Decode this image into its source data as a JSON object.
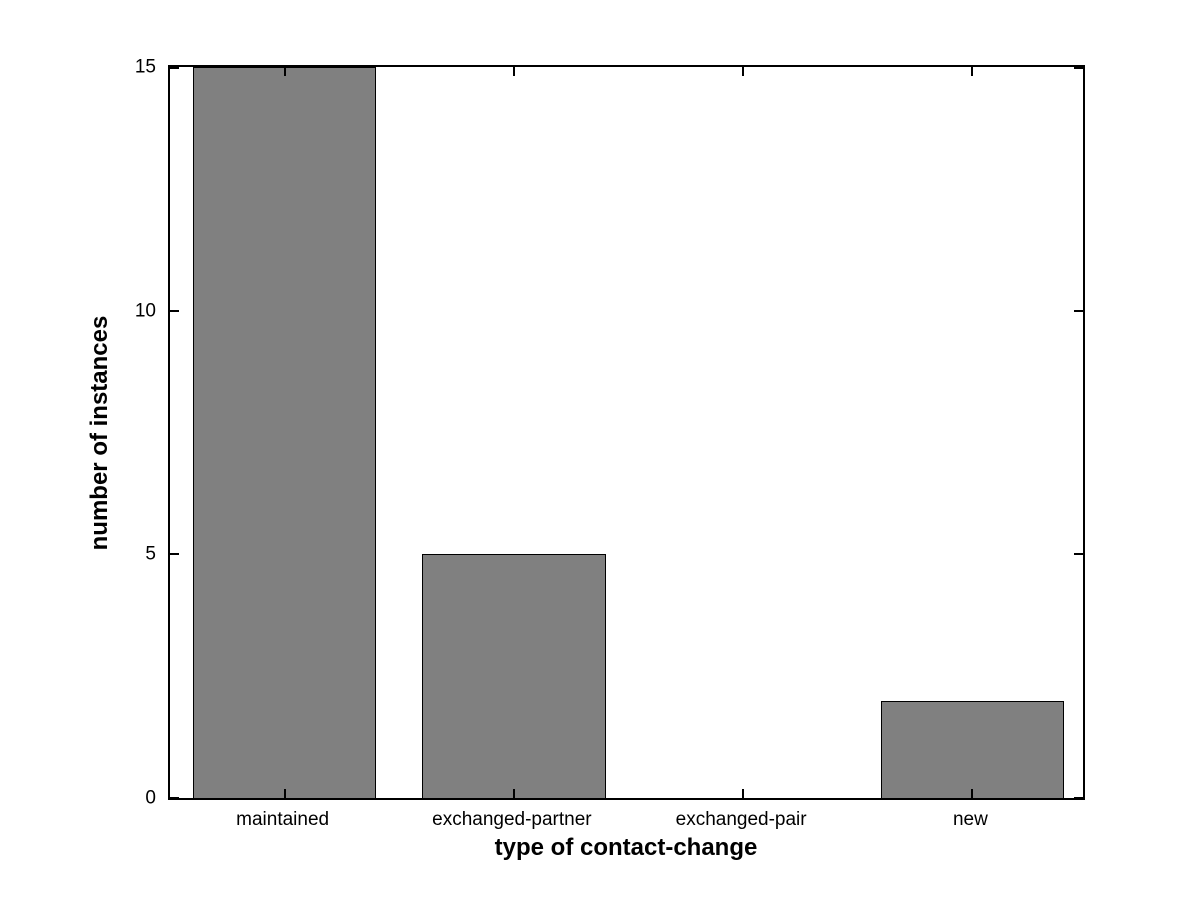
{
  "chart_data": {
    "type": "bar",
    "categories": [
      "maintained",
      "exchanged-partner",
      "exchanged-pair",
      "new"
    ],
    "values": [
      15,
      5,
      0,
      2
    ],
    "title": "",
    "xlabel": "type of contact-change",
    "ylabel": "number of instances",
    "ylim": [
      0,
      15
    ],
    "yticks": [
      0,
      5,
      10,
      15
    ],
    "bar_width_fraction": 0.8,
    "bar_color": "#808080",
    "bar_edge_color": "#000000",
    "axis_color": "#000000",
    "background": "#ffffff",
    "grid": false,
    "legend": "none"
  }
}
